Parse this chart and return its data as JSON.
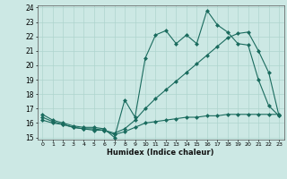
{
  "xlabel": "Humidex (Indice chaleur)",
  "ylabel": "",
  "bg_color": "#cce8e4",
  "line_color": "#1a6b5e",
  "grid_color": "#aed4ce",
  "xmin": 0,
  "xmax": 23,
  "ymin": 15,
  "ymax": 24,
  "line1_x": [
    0,
    1,
    2,
    3,
    4,
    5,
    6,
    7,
    8,
    9,
    10,
    11,
    12,
    13,
    14,
    15,
    16,
    17,
    18,
    19,
    20,
    21,
    22,
    23
  ],
  "line1_y": [
    16.6,
    16.2,
    16.0,
    15.8,
    15.7,
    15.7,
    15.6,
    15.0,
    17.6,
    16.4,
    20.5,
    22.1,
    22.4,
    21.5,
    22.1,
    21.5,
    23.8,
    22.8,
    22.3,
    21.5,
    21.4,
    19.0,
    17.2,
    16.5
  ],
  "line2_x": [
    0,
    1,
    2,
    3,
    4,
    5,
    6,
    7,
    8,
    9,
    10,
    11,
    12,
    13,
    14,
    15,
    16,
    17,
    18,
    19,
    20,
    21,
    22,
    23
  ],
  "line2_y": [
    16.4,
    16.1,
    15.9,
    15.7,
    15.6,
    15.6,
    15.5,
    15.3,
    15.6,
    16.2,
    17.0,
    17.7,
    18.3,
    18.9,
    19.5,
    20.1,
    20.7,
    21.3,
    21.9,
    22.2,
    22.3,
    21.0,
    19.5,
    16.5
  ],
  "line3_x": [
    0,
    1,
    2,
    3,
    4,
    5,
    6,
    7,
    8,
    9,
    10,
    11,
    12,
    13,
    14,
    15,
    16,
    17,
    18,
    19,
    20,
    21,
    22,
    23
  ],
  "line3_y": [
    16.2,
    16.0,
    15.9,
    15.7,
    15.6,
    15.5,
    15.5,
    15.2,
    15.4,
    15.7,
    16.0,
    16.1,
    16.2,
    16.3,
    16.4,
    16.4,
    16.5,
    16.5,
    16.6,
    16.6,
    16.6,
    16.6,
    16.6,
    16.6
  ],
  "yticks": [
    15,
    16,
    17,
    18,
    19,
    20,
    21,
    22,
    23,
    24
  ],
  "xticks": [
    0,
    1,
    2,
    3,
    4,
    5,
    6,
    7,
    8,
    9,
    10,
    11,
    12,
    13,
    14,
    15,
    16,
    17,
    18,
    19,
    20,
    21,
    22,
    23
  ]
}
